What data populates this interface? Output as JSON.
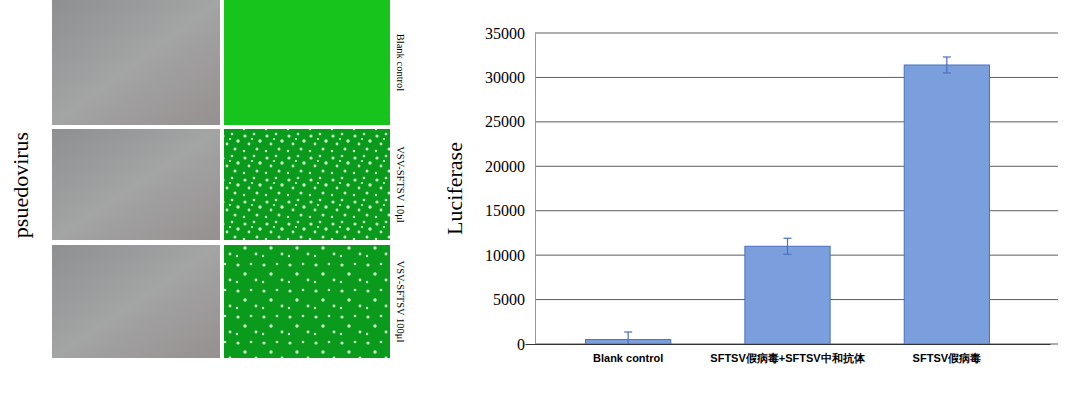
{
  "panels": {
    "row_label": "psuedovirus",
    "rows": [
      "Blank control",
      "VSV-SFTSV 10μl",
      "VSV-SFTSV 100μl"
    ]
  },
  "chart_data": {
    "type": "bar",
    "y_label": "Luciferase",
    "categories": [
      "Blank control",
      "SFTSV假病毒+SFTSV中和抗体",
      "SFTSV假病毒"
    ],
    "values": [
      500,
      11000,
      31400
    ],
    "errors": [
      850,
      900,
      900
    ],
    "color": "#7b9fdc",
    "ylim": [
      0,
      35000
    ],
    "yticks": [
      0,
      5000,
      10000,
      15000,
      20000,
      25000,
      30000,
      35000
    ],
    "grid": true
  }
}
